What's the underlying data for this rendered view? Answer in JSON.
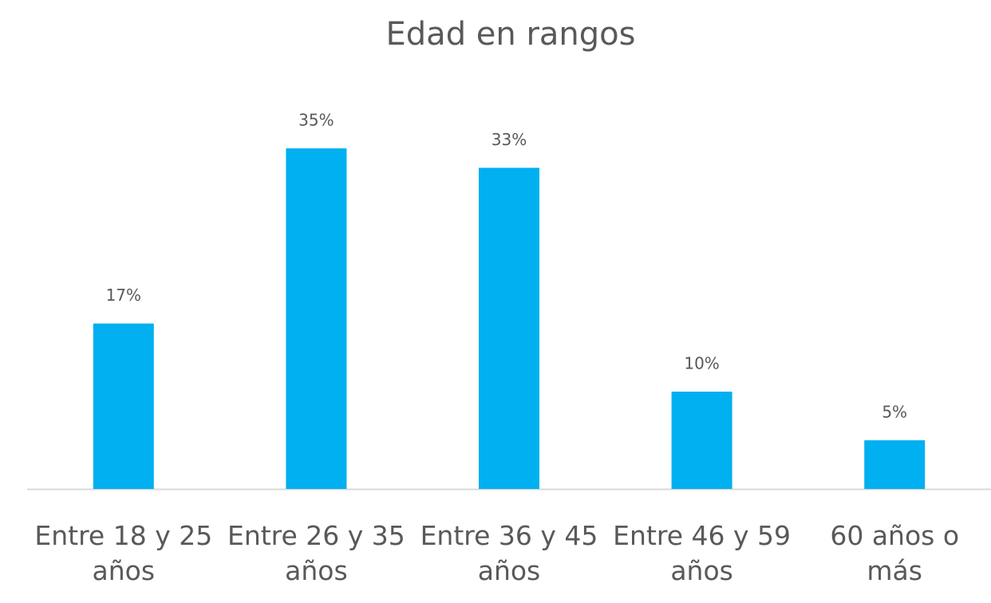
{
  "chart_data": {
    "type": "bar",
    "title": "Edad en rangos",
    "categories": [
      "Entre 18 y 25 años",
      "Entre 26 y 35 años",
      "Entre 36 y 45 años",
      "Entre 46 y 59 años",
      "60 años o más"
    ],
    "values": [
      17,
      35,
      33,
      10,
      5
    ],
    "value_labels": [
      "17%",
      "35%",
      "33%",
      "10%",
      "5%"
    ],
    "color": "#00b0f0",
    "ylim": [
      0,
      35
    ]
  }
}
